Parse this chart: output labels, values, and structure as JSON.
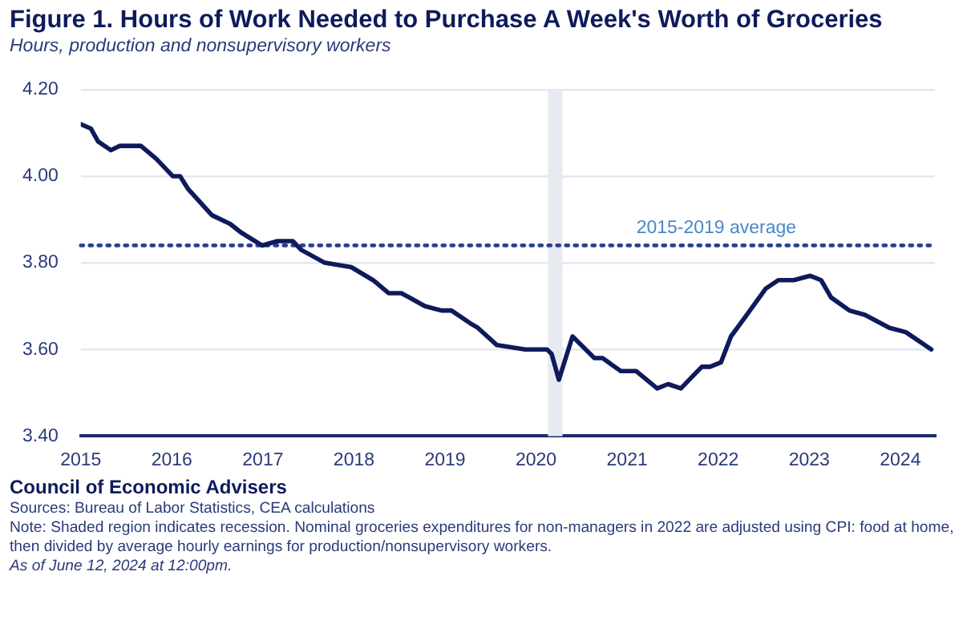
{
  "chart_data": {
    "type": "line",
    "title": "Figure 1. Hours of Work Needed to Purchase A Week's Worth of Groceries",
    "subtitle": "Hours, production and nonsupervisory workers",
    "x": [
      2015.0,
      2015.11,
      2015.19,
      2015.33,
      2015.43,
      2015.57,
      2015.66,
      2015.83,
      2016.01,
      2016.09,
      2016.18,
      2016.44,
      2016.64,
      2016.76,
      2016.99,
      2017.16,
      2017.33,
      2017.42,
      2017.68,
      2017.97,
      2018.21,
      2018.38,
      2018.52,
      2018.78,
      2018.96,
      2019.07,
      2019.28,
      2019.36,
      2019.57,
      2019.88,
      2020.12,
      2020.17,
      2020.25,
      2020.4,
      2020.64,
      2020.73,
      2020.93,
      2021.1,
      2021.33,
      2021.45,
      2021.59,
      2021.82,
      2021.91,
      2022.03,
      2022.14,
      2022.28,
      2022.52,
      2022.66,
      2022.83,
      2023.01,
      2023.13,
      2023.24,
      2023.44,
      2023.61,
      2023.88,
      2024.06,
      2024.2,
      2024.34
    ],
    "series": [
      {
        "color": "#0e1a5a",
        "values": [
          4.12,
          4.11,
          4.08,
          4.06,
          4.07,
          4.07,
          4.07,
          4.04,
          4.0,
          4.0,
          3.97,
          3.91,
          3.89,
          3.87,
          3.84,
          3.85,
          3.85,
          3.83,
          3.8,
          3.79,
          3.76,
          3.73,
          3.73,
          3.7,
          3.69,
          3.69,
          3.66,
          3.65,
          3.61,
          3.6,
          3.6,
          3.59,
          3.53,
          3.63,
          3.58,
          3.58,
          3.55,
          3.55,
          3.51,
          3.52,
          3.51,
          3.56,
          3.56,
          3.57,
          3.63,
          3.67,
          3.74,
          3.76,
          3.76,
          3.77,
          3.76,
          3.72,
          3.69,
          3.68,
          3.65,
          3.64,
          3.62,
          3.6
        ]
      }
    ],
    "xlim": [
      2015,
      2024.38
    ],
    "xticks": [
      2015,
      2016,
      2017,
      2018,
      2019,
      2020,
      2021,
      2022,
      2023,
      2024
    ],
    "ylim": [
      3.4,
      4.2
    ],
    "yticks": [
      {
        "value": 3.4,
        "label": "3.40"
      },
      {
        "value": 3.6,
        "label": "3.60"
      },
      {
        "value": 3.8,
        "label": "3.80"
      },
      {
        "value": 4.0,
        "label": "4.00"
      },
      {
        "value": 4.2,
        "label": "4.20"
      }
    ],
    "grid": "y",
    "marker": "none",
    "line_style": "solid",
    "legend": false,
    "ref_lines": [
      {
        "axis": "y",
        "value": 3.84,
        "label": "2015-2019 average",
        "color": "#2a3f8f",
        "line_style": "dotted"
      }
    ],
    "bands": [
      {
        "axis": "x",
        "from": 2020.13,
        "to": 2020.29,
        "color": "#e8eaf2"
      }
    ],
    "annotations": [
      "Council of Economic Advisers",
      "Sources: Bureau of Labor Statistics, CEA calculations",
      "Note: Shaded region indicates recession. Nominal groceries expenditures for non-managers in 2022 are adjusted using CPI: food at home, then divided by average hourly earnings for production/nonsupervisory workers.",
      "As of June 12, 2024 at 12:00pm."
    ]
  }
}
